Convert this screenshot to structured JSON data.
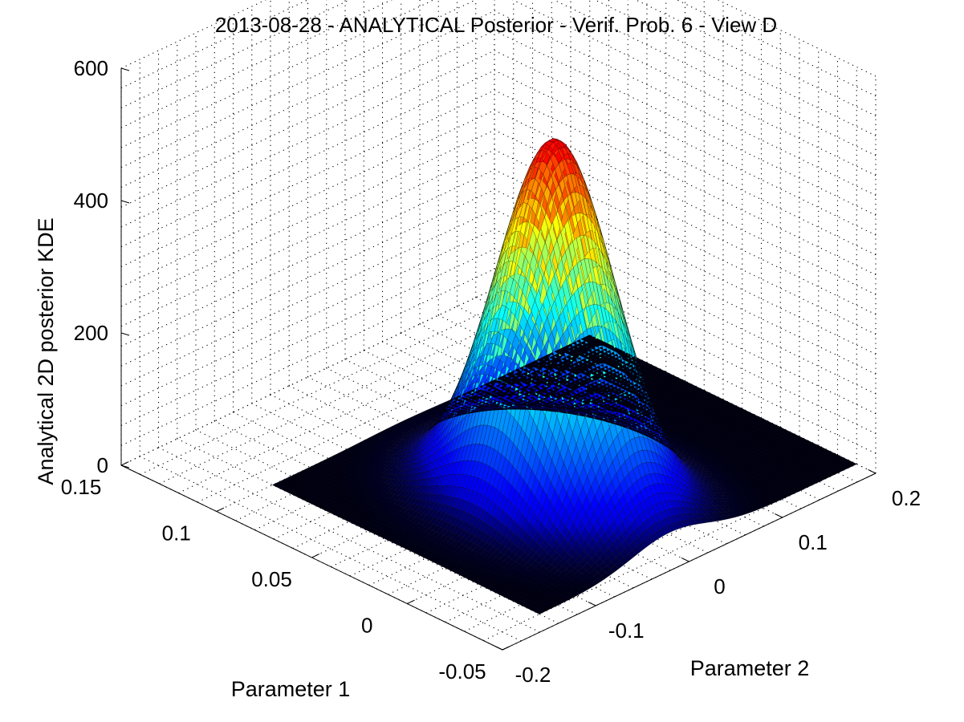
{
  "chart_data": {
    "type": "surface",
    "title": "2013-08-28 - ANALYTICAL Posterior - Verif. Prob. 6 - View D",
    "xlabel": "Parameter 1",
    "ylabel": "Parameter 2",
    "zlabel": "Analytical 2D posterior KDE",
    "x_ticks": [
      "-0.05",
      "0",
      "0.05",
      "0.1",
      "0.15"
    ],
    "y_ticks": [
      "-0.2",
      "-0.1",
      "0",
      "0.1",
      "0.2"
    ],
    "z_ticks": [
      "0",
      "200",
      "400",
      "600"
    ],
    "xlim": [
      -0.05,
      0.15
    ],
    "ylim": [
      -0.2,
      0.2
    ],
    "zlim": [
      0,
      600
    ],
    "grid": true,
    "colormap": "jet",
    "surface_domain": {
      "x": [
        -0.04,
        0.1
      ],
      "y": [
        -0.14,
        0.2
      ]
    },
    "peak": {
      "x": 0.02,
      "y": 0.0,
      "z": 540
    },
    "spread": {
      "x": 0.025,
      "y": 0.04
    }
  }
}
